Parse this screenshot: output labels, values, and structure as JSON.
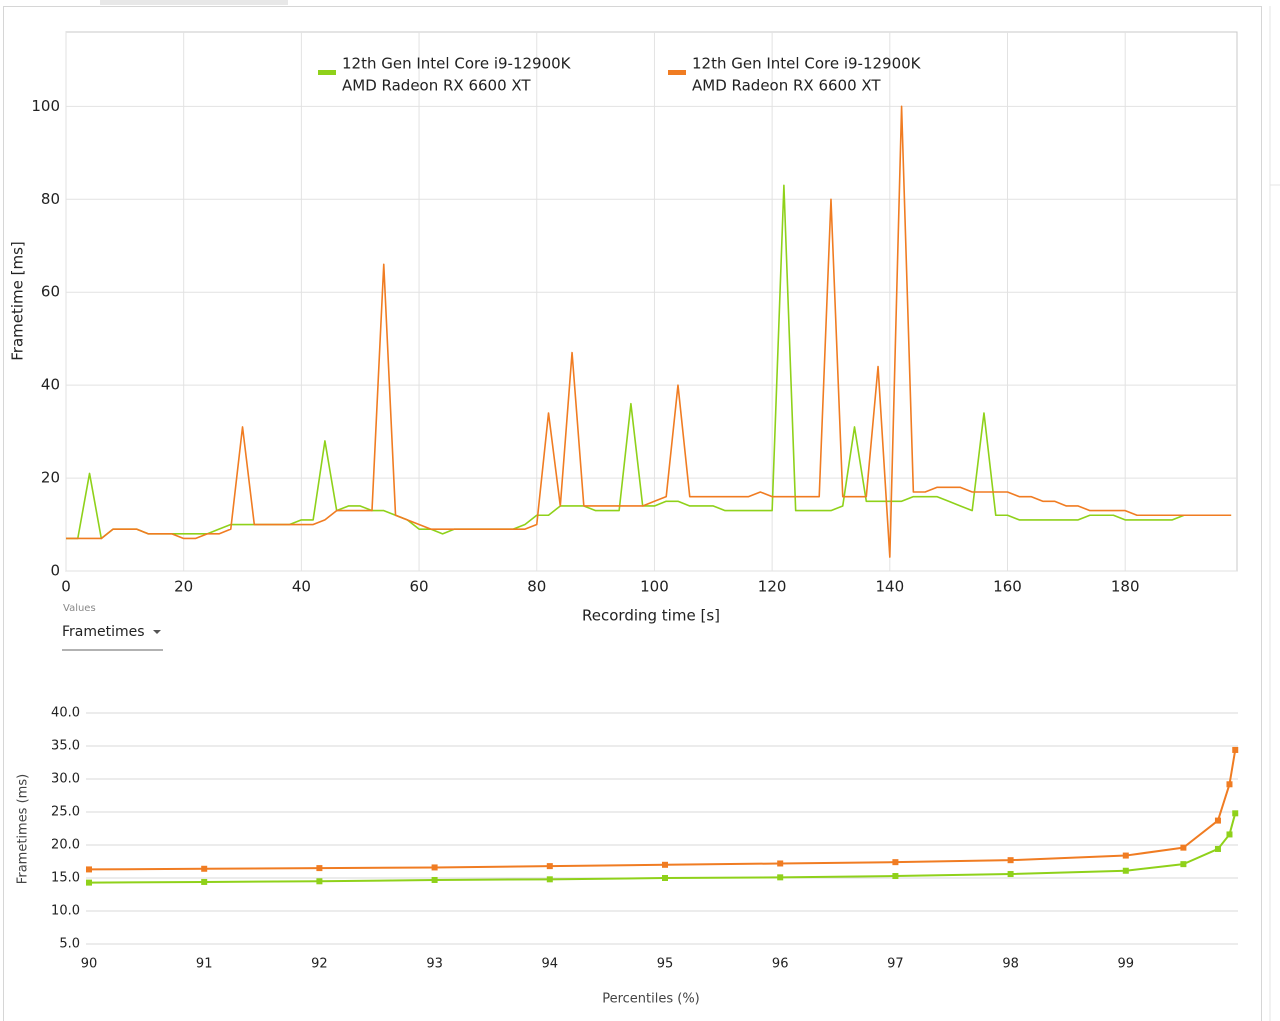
{
  "chart_data": [
    {
      "type": "line",
      "xlabel": "Recording time [s]",
      "ylabel": "Frametime [ms]",
      "x": [
        0,
        2,
        4,
        6,
        8,
        10,
        12,
        14,
        16,
        18,
        20,
        22,
        24,
        26,
        28,
        30,
        32,
        34,
        36,
        38,
        40,
        42,
        44,
        46,
        48,
        50,
        52,
        54,
        56,
        58,
        60,
        62,
        64,
        66,
        68,
        70,
        72,
        74,
        76,
        78,
        80,
        82,
        84,
        86,
        88,
        90,
        92,
        94,
        96,
        98,
        100,
        102,
        104,
        106,
        108,
        110,
        112,
        114,
        116,
        118,
        120,
        122,
        124,
        126,
        128,
        130,
        132,
        134,
        136,
        138,
        140,
        142,
        144,
        146,
        148,
        150,
        152,
        154,
        156,
        158,
        160,
        162,
        164,
        166,
        168,
        170,
        172,
        174,
        176,
        178,
        180,
        182,
        184,
        186,
        188,
        190,
        192,
        194,
        196,
        198
      ],
      "series": [
        {
          "name": "12th Gen Intel Core i9-12900K",
          "device": "AMD Radeon RX 6600 XT",
          "color": "#8fd11a",
          "values": [
            7,
            7,
            21,
            7,
            9,
            9,
            9,
            8,
            8,
            8,
            8,
            8,
            8,
            9,
            10,
            10,
            10,
            10,
            10,
            10,
            11,
            11,
            28,
            13,
            14,
            14,
            13,
            13,
            12,
            11,
            9,
            9,
            8,
            9,
            9,
            9,
            9,
            9,
            9,
            10,
            12,
            12,
            14,
            14,
            14,
            13,
            13,
            13,
            36,
            14,
            14,
            15,
            15,
            14,
            14,
            14,
            13,
            13,
            13,
            13,
            13,
            83,
            13,
            13,
            13,
            13,
            14,
            31,
            15,
            15,
            15,
            15,
            16,
            16,
            16,
            15,
            14,
            13,
            34,
            12,
            12,
            11,
            11,
            11,
            11,
            11,
            11,
            12,
            12,
            12,
            11,
            11,
            11,
            11,
            11,
            12,
            12,
            12,
            12,
            12
          ]
        },
        {
          "name": "12th Gen Intel Core i9-12900K",
          "device": "AMD Radeon RX 6600 XT",
          "color": "#f07c22",
          "values": [
            7,
            7,
            7,
            7,
            9,
            9,
            9,
            8,
            8,
            8,
            7,
            7,
            8,
            8,
            9,
            31,
            10,
            10,
            10,
            10,
            10,
            10,
            11,
            13,
            13,
            13,
            13,
            66,
            12,
            11,
            10,
            9,
            9,
            9,
            9,
            9,
            9,
            9,
            9,
            9,
            10,
            34,
            14,
            47,
            14,
            14,
            14,
            14,
            14,
            14,
            15,
            16,
            40,
            16,
            16,
            16,
            16,
            16,
            16,
            17,
            16,
            16,
            16,
            16,
            16,
            80,
            16,
            16,
            16,
            44,
            3,
            100,
            17,
            17,
            18,
            18,
            18,
            17,
            17,
            17,
            17,
            16,
            16,
            15,
            15,
            14,
            14,
            13,
            13,
            13,
            13,
            12,
            12,
            12,
            12,
            12,
            12,
            12,
            12,
            12
          ]
        }
      ],
      "xlim": [
        0,
        199
      ],
      "ylim": [
        0,
        116
      ],
      "xticks": [
        0,
        20,
        40,
        60,
        80,
        100,
        120,
        140,
        160,
        180
      ],
      "yticks": [
        0,
        20,
        40,
        60,
        80,
        100
      ],
      "grid": true,
      "legend": "top"
    },
    {
      "type": "line",
      "xlabel": "Percentiles (%)",
      "ylabel": "Frametimes (ms)",
      "x": [
        90,
        91,
        92,
        93,
        94,
        95,
        96,
        97,
        98,
        99,
        99.5,
        99.8,
        99.9,
        99.95
      ],
      "series": [
        {
          "color": "#8fd11a",
          "values": [
            14.3,
            14.4,
            14.5,
            14.7,
            14.8,
            15.0,
            15.1,
            15.3,
            15.6,
            16.1,
            17.1,
            19.4,
            21.6,
            24.8
          ]
        },
        {
          "color": "#f07c22",
          "values": [
            16.3,
            16.4,
            16.5,
            16.6,
            16.8,
            17.0,
            17.2,
            17.4,
            17.7,
            18.4,
            19.6,
            23.7,
            29.2,
            34.4
          ]
        }
      ],
      "xlim": [
        90,
        100
      ],
      "ylim": [
        5,
        40
      ],
      "xticks": [
        90,
        91,
        92,
        93,
        94,
        95,
        96,
        97,
        98,
        99
      ],
      "yticks": [
        {
          "value": 5,
          "label": "5.0"
        },
        {
          "value": 10,
          "label": "10.0"
        },
        {
          "value": 15,
          "label": "15.0"
        },
        {
          "value": 20,
          "label": "20.0"
        },
        {
          "value": 25,
          "label": "25.0"
        },
        {
          "value": 30,
          "label": "30.0"
        },
        {
          "value": 35,
          "label": "35.0"
        },
        {
          "value": 40,
          "label": "40.0"
        }
      ],
      "grid": true,
      "markers": true
    }
  ],
  "ui": {
    "values_label": "Values",
    "dropdown": "Frametimes"
  }
}
